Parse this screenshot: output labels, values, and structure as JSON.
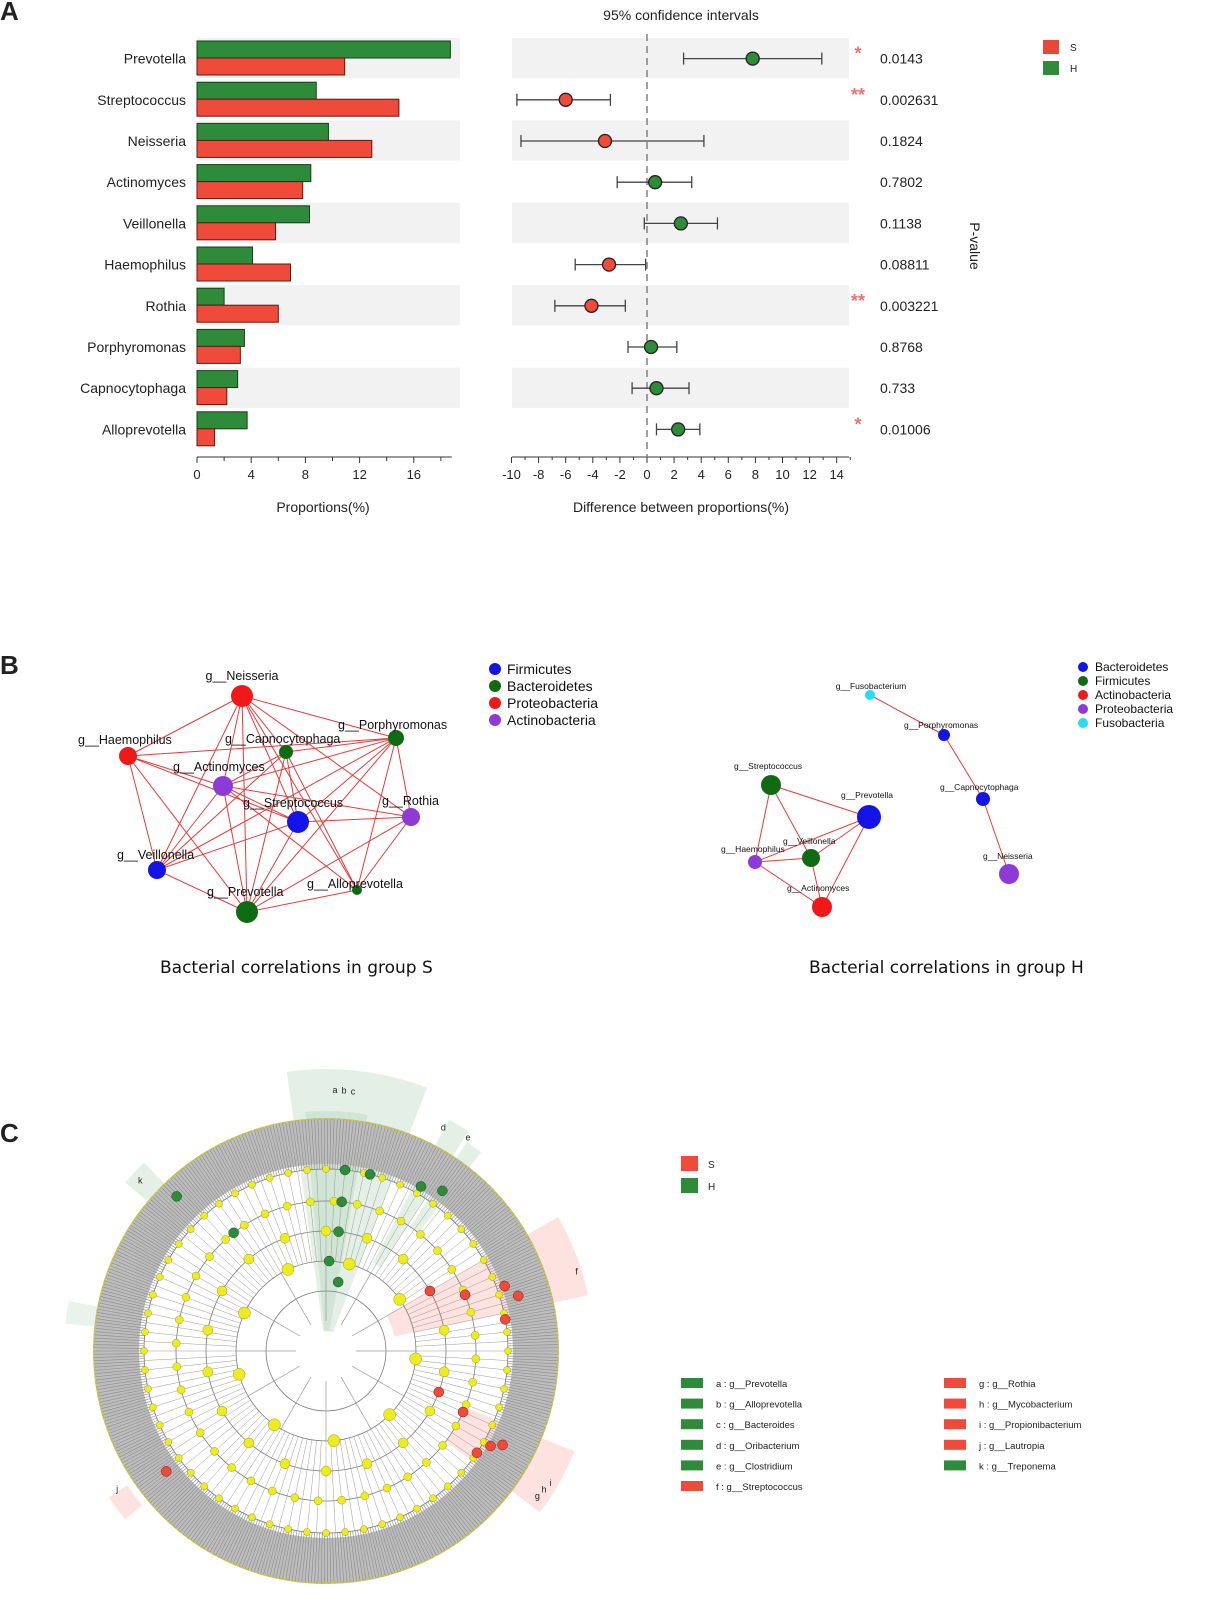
{
  "panel_labels": {
    "a": "A",
    "b": "B",
    "c": "C"
  },
  "panelA": {
    "ci_title": "95% confidence intervals",
    "legend": [
      {
        "label": "S",
        "color": "#e8473a"
      },
      {
        "label": "H",
        "color": "#2e8b3a"
      }
    ],
    "pvalue_label": "P-value",
    "colors": {
      "S": "#f04a3a",
      "H": "#2e8b3a",
      "band": "#f2f2f2",
      "star": "#f07070"
    }
  },
  "chart_data": [
    {
      "type": "bar",
      "title": "",
      "xlabel": "Proportions(%)",
      "ylabel": "",
      "orientation": "horizontal",
      "categories": [
        "Prevotella",
        "Streptococcus",
        "Neisseria",
        "Actinomyces",
        "Veillonella",
        "Haemophilus",
        "Rothia",
        "Porphyromonas",
        "Capnocytophaga",
        "Alloprevotella"
      ],
      "series": [
        {
          "name": "H",
          "values": [
            18.7,
            8.8,
            9.7,
            8.4,
            8.3,
            4.1,
            2.0,
            3.5,
            3.0,
            3.7
          ]
        },
        {
          "name": "S",
          "values": [
            10.9,
            14.9,
            12.9,
            7.8,
            5.8,
            6.9,
            6.0,
            3.2,
            2.2,
            1.3
          ]
        }
      ],
      "xlim": [
        0,
        18.8
      ],
      "xticks": [
        "0",
        "4",
        "8",
        "12",
        "16"
      ]
    },
    {
      "type": "scatter",
      "title": "95% confidence intervals",
      "xlabel": "Difference between proportions(%)",
      "ylabel": "",
      "categories": [
        "Prevotella",
        "Streptococcus",
        "Neisseria",
        "Actinomyces",
        "Veillonella",
        "Haemophilus",
        "Rothia",
        "Porphyromonas",
        "Capnocytophaga",
        "Alloprevotella"
      ],
      "points": [
        {
          "diff": 7.8,
          "low": 2.7,
          "high": 12.9,
          "group": "H",
          "p": "0.0143",
          "sig": "*"
        },
        {
          "diff": -6.0,
          "low": -9.6,
          "high": -2.7,
          "group": "S",
          "p": "0.002631",
          "sig": "**"
        },
        {
          "diff": -3.1,
          "low": -9.3,
          "high": 4.2,
          "group": "S",
          "p": "0.1824",
          "sig": ""
        },
        {
          "diff": 0.6,
          "low": -2.2,
          "high": 3.3,
          "group": "H",
          "p": "0.7802",
          "sig": ""
        },
        {
          "diff": 2.5,
          "low": -0.2,
          "high": 5.2,
          "group": "H",
          "p": "0.1138",
          "sig": ""
        },
        {
          "diff": -2.8,
          "low": -5.3,
          "high": -0.1,
          "group": "S",
          "p": "0.08811",
          "sig": ""
        },
        {
          "diff": -4.1,
          "low": -6.8,
          "high": -1.6,
          "group": "S",
          "p": "0.003221",
          "sig": "**"
        },
        {
          "diff": 0.3,
          "low": -1.4,
          "high": 2.2,
          "group": "H",
          "p": "0.8768",
          "sig": ""
        },
        {
          "diff": 0.7,
          "low": -1.1,
          "high": 3.1,
          "group": "H",
          "p": "0.733",
          "sig": ""
        },
        {
          "diff": 2.3,
          "low": 0.7,
          "high": 3.9,
          "group": "H",
          "p": "0.01006",
          "sig": "*"
        }
      ],
      "xlim": [
        -10,
        15
      ],
      "xticks": [
        "-10",
        "-8",
        "-6",
        "-4",
        "-2",
        "0",
        "2",
        "4",
        "6",
        "8",
        "10",
        "12",
        "14"
      ]
    }
  ],
  "panelB": {
    "left": {
      "caption": "Bacterial correlations in group S",
      "legend": [
        {
          "label": "Firmicutes",
          "color": "#1414e6"
        },
        {
          "label": "Bacteroidetes",
          "color": "#0f6b12"
        },
        {
          "label": "Proteobacteria",
          "color": "#f01818"
        },
        {
          "label": "Actinobacteria",
          "color": "#8e3ad6"
        }
      ],
      "nodes": [
        {
          "name": "g__Neisseria",
          "color": "#f01818"
        },
        {
          "name": "g__Haemophilus",
          "color": "#f01818"
        },
        {
          "name": "g__Capnocytophaga",
          "color": "#0f6b12"
        },
        {
          "name": "g__Porphyromonas",
          "color": "#0f6b12"
        },
        {
          "name": "g__Actinomyces",
          "color": "#8e3ad6"
        },
        {
          "name": "g__Streptococcus",
          "color": "#1414e6"
        },
        {
          "name": "g__Rothia",
          "color": "#8e3ad6"
        },
        {
          "name": "g__Veillonella",
          "color": "#1414e6"
        },
        {
          "name": "g__Prevotella",
          "color": "#0f6b12"
        },
        {
          "name": "g__Alloprevotella",
          "color": "#0f6b12"
        }
      ]
    },
    "right": {
      "caption": "Bacterial correlations in group H",
      "legend": [
        {
          "label": "Bacteroidetes",
          "color": "#1414e6"
        },
        {
          "label": "Firmicutes",
          "color": "#0f6b12"
        },
        {
          "label": "Actinobacteria",
          "color": "#f01818"
        },
        {
          "label": "Proteobacteria",
          "color": "#8e3ad6"
        },
        {
          "label": "Fusobacteria",
          "color": "#22e0f0"
        }
      ],
      "nodes": [
        {
          "name": "g__Fusobacterium",
          "color": "#22e0f0"
        },
        {
          "name": "g__Porphyromonas",
          "color": "#1414e6"
        },
        {
          "name": "g__Capnocytophaga",
          "color": "#1414e6"
        },
        {
          "name": "g__Neisseria",
          "color": "#8e3ad6"
        },
        {
          "name": "g__Streptococcus",
          "color": "#0f6b12"
        },
        {
          "name": "g__Prevotella",
          "color": "#1414e6"
        },
        {
          "name": "g__Veillonella",
          "color": "#0f6b12"
        },
        {
          "name": "g__Haemophilus",
          "color": "#8e3ad6"
        },
        {
          "name": "g__Actinomyces",
          "color": "#f01818"
        }
      ]
    }
  },
  "panelC": {
    "legend": [
      {
        "label": "S",
        "color": "#f04a3a"
      },
      {
        "label": "H",
        "color": "#2e8b3a"
      }
    ],
    "clade_labels": [
      "a",
      "b",
      "c",
      "d",
      "e",
      "f",
      "g",
      "h",
      "i",
      "j",
      "k"
    ],
    "taxa_legend": [
      {
        "label": "a : g__Prevotella",
        "group": "H"
      },
      {
        "label": "b : g__Alloprevotella",
        "group": "H"
      },
      {
        "label": "c : g__Bacteroides",
        "group": "H"
      },
      {
        "label": "d : g__Oribacterium",
        "group": "H"
      },
      {
        "label": "e : g__Clostridium",
        "group": "H"
      },
      {
        "label": "f : g__Streptococcus",
        "group": "S"
      },
      {
        "label": "g : g__Rothia",
        "group": "S"
      },
      {
        "label": "h : g__Mycobacterium",
        "group": "S"
      },
      {
        "label": "i : g__Propionibacterium",
        "group": "S"
      },
      {
        "label": "j : g__Lautropia",
        "group": "S"
      },
      {
        "label": "k : g__Treponema",
        "group": "H"
      }
    ]
  }
}
